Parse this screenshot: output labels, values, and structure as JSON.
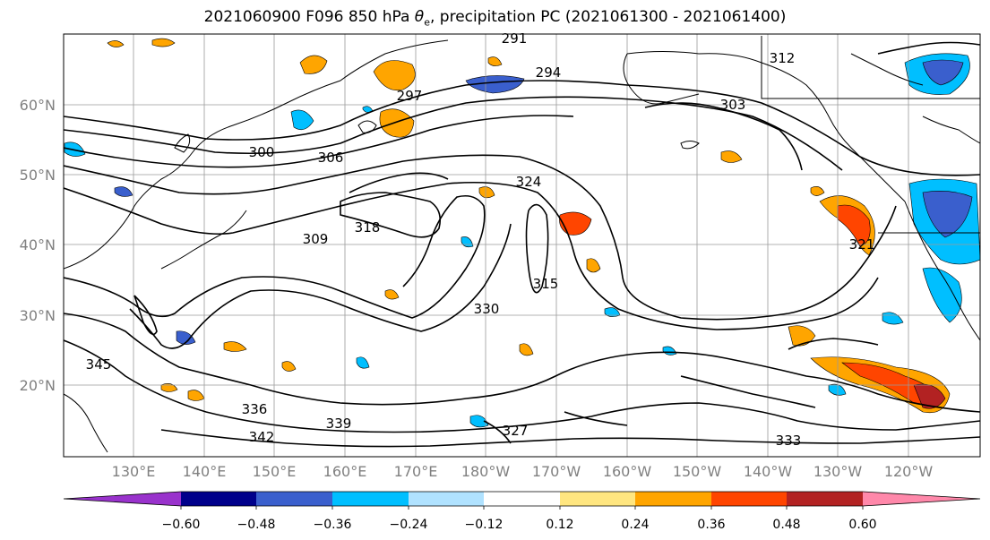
{
  "title": {
    "prefix": "2021060900 F096 850 hPa ",
    "theta": "θ",
    "theta_sub": "e",
    "suffix": ", precipitation PC (2021061300 - 2021061400)"
  },
  "map": {
    "lat_labels": [
      "60°N",
      "50°N",
      "40°N",
      "30°N",
      "20°N"
    ],
    "lon_labels": [
      "130°E",
      "140°E",
      "150°E",
      "160°E",
      "170°E",
      "180°W",
      "170°W",
      "160°W",
      "150°W",
      "140°W",
      "130°W",
      "120°W"
    ],
    "contour_labels": [
      "291",
      "294",
      "297",
      "300",
      "303",
      "306",
      "309",
      "312",
      "315",
      "318",
      "321",
      "324",
      "327",
      "330",
      "333",
      "336",
      "339",
      "342",
      "345"
    ]
  },
  "colorbar": {
    "ticks": [
      "−0.60",
      "−0.48",
      "−0.36",
      "−0.24",
      "−0.12",
      "0.12",
      "0.24",
      "0.36",
      "0.48",
      "0.60"
    ],
    "colors": [
      "#9932cc",
      "#00008b",
      "#3a5fcd",
      "#00bfff",
      "#b0e2ff",
      "#ffffff",
      "#ffe680",
      "#ffa500",
      "#ff4500",
      "#b22222",
      "#ff88aa"
    ]
  }
}
